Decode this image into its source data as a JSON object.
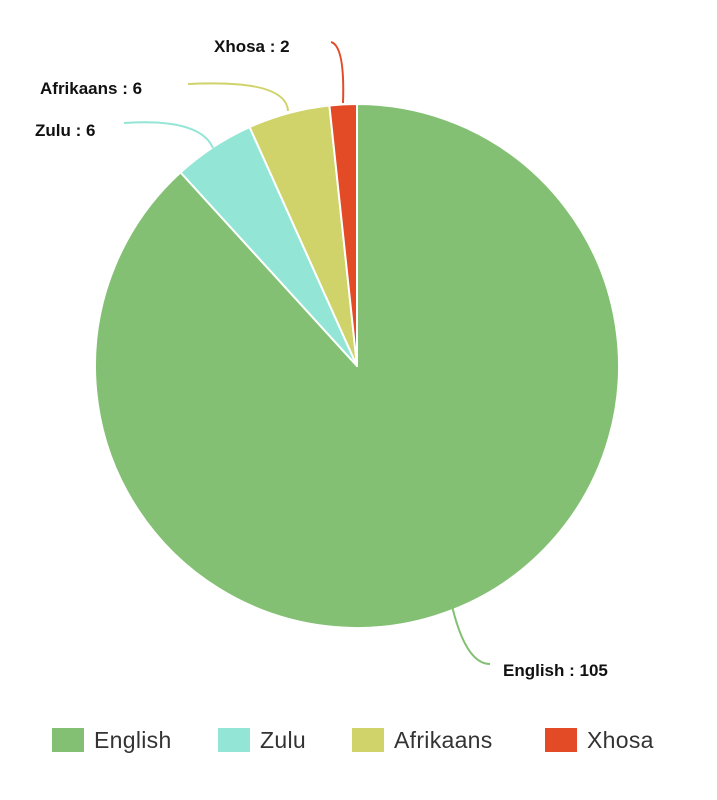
{
  "chart_data": {
    "type": "pie",
    "title": "",
    "categories": [
      "English",
      "Zulu",
      "Afrikaans",
      "Xhosa"
    ],
    "values": [
      105,
      6,
      6,
      2
    ],
    "colors": [
      "#83c073",
      "#93e6d6",
      "#cfd36a",
      "#e34a26"
    ],
    "data_labels": [
      "English : 105",
      "Zulu : 6",
      "Afrikaans : 6",
      "Xhosa : 2"
    ],
    "start_angle_deg": 0,
    "direction": "clockwise",
    "legend_position": "bottom"
  }
}
